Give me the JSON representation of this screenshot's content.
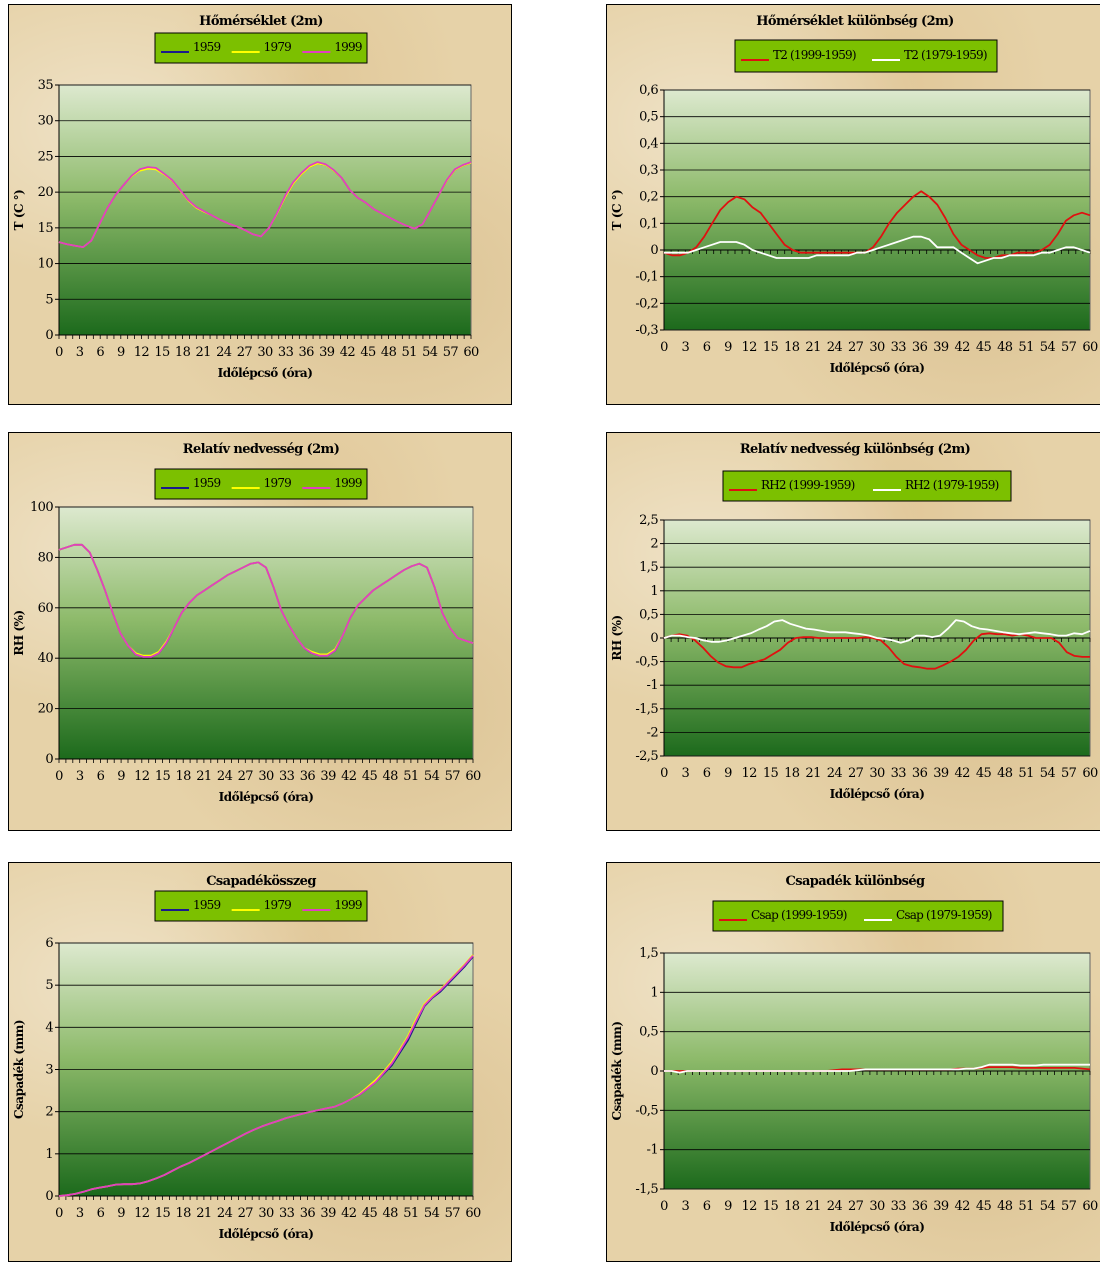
{
  "charts": [
    {
      "id": "p0",
      "title": "Hőmérséklet (2m)",
      "xlabel": "Időlépcső (óra)",
      "ylabel": "T (C °)",
      "type": "line",
      "ylim": [
        0,
        35
      ],
      "yticks": [
        "0",
        "5",
        "10",
        "15",
        "20",
        "25",
        "30",
        "35"
      ],
      "legend": "top-center",
      "series": [
        {
          "name": "1959",
          "color": "#1a1a8c",
          "values": [
            13,
            12.7,
            12.5,
            12.3,
            13.2,
            15.5,
            17.8,
            19.6,
            21,
            22.2,
            23,
            23.4,
            23.3,
            22.5,
            21.6,
            20.2,
            18.8,
            17.8,
            17.2,
            16.7,
            16.1,
            15.6,
            15.2,
            14.7,
            14.1,
            13.8,
            15,
            17,
            19.3,
            21.2,
            22.5,
            23.5,
            24,
            23.8,
            23,
            22,
            20.3,
            19.2,
            18.5,
            17.6,
            17,
            16.4,
            15.8,
            15.3,
            14.9,
            15.5,
            17.5,
            19.6,
            21.6,
            23.1,
            23.7,
            24.1
          ]
        },
        {
          "name": "1979",
          "color": "#ffff00",
          "values": [
            13,
            12.7,
            12.5,
            12.3,
            13.2,
            15.5,
            17.8,
            19.6,
            21,
            22.2,
            23,
            23.3,
            23.2,
            22.5,
            21.6,
            20.2,
            18.8,
            17.8,
            17.2,
            16.7,
            16.1,
            15.6,
            15.2,
            14.7,
            14.1,
            13.8,
            15,
            17,
            19.3,
            21.2,
            22.5,
            23.5,
            24,
            23.8,
            23,
            22,
            20.3,
            19.2,
            18.5,
            17.6,
            17,
            16.4,
            15.8,
            15.3,
            14.9,
            15.5,
            17.5,
            19.6,
            21.6,
            23.1,
            23.7,
            24.1
          ]
        },
        {
          "name": "1999",
          "color": "#e040c0",
          "values": [
            13,
            12.7,
            12.5,
            12.3,
            13.2,
            15.5,
            17.8,
            19.6,
            21,
            22.3,
            23.2,
            23.5,
            23.4,
            22.6,
            21.7,
            20.3,
            18.9,
            17.9,
            17.3,
            16.7,
            16.1,
            15.6,
            15.2,
            14.7,
            14.1,
            13.8,
            15,
            17.1,
            19.5,
            21.4,
            22.7,
            23.7,
            24.2,
            23.9,
            23.1,
            22,
            20.3,
            19.2,
            18.5,
            17.6,
            17,
            16.4,
            15.8,
            15.3,
            14.9,
            15.5,
            17.5,
            19.6,
            21.7,
            23.2,
            23.8,
            24.2
          ]
        }
      ]
    },
    {
      "id": "p1",
      "title": "Hőmérséklet különbség (2m)",
      "xlabel": "Időlépcső (óra)",
      "ylabel": "T (C °)",
      "type": "line",
      "ylim": [
        -0.3,
        0.6
      ],
      "yticks": [
        "-0,3",
        "-0,2",
        "-0,1",
        "0",
        "0,1",
        "0,2",
        "0,3",
        "0,4",
        "0,5",
        "0,6"
      ],
      "legend": "top-center",
      "series": [
        {
          "name": "T2 (1999-1959)",
          "color": "#e01010",
          "values": [
            -0.01,
            -0.02,
            -0.02,
            -0.01,
            0.01,
            0.05,
            0.1,
            0.15,
            0.18,
            0.2,
            0.19,
            0.16,
            0.14,
            0.1,
            0.06,
            0.02,
            0,
            -0.01,
            -0.01,
            -0.01,
            -0.01,
            -0.01,
            -0.01,
            -0.01,
            -0.01,
            -0.01,
            0.01,
            0.05,
            0.1,
            0.14,
            0.17,
            0.2,
            0.22,
            0.2,
            0.17,
            0.12,
            0.06,
            0.02,
            0,
            -0.02,
            -0.03,
            -0.03,
            -0.02,
            -0.02,
            -0.01,
            -0.01,
            -0.01,
            0,
            0.02,
            0.06,
            0.11,
            0.13,
            0.14,
            0.13
          ]
        },
        {
          "name": "T2 (1979-1959)",
          "color": "#ffffff",
          "values": [
            -0.01,
            -0.01,
            -0.01,
            -0.01,
            0,
            0.01,
            0.02,
            0.03,
            0.03,
            0.03,
            0.02,
            0,
            -0.01,
            -0.02,
            -0.03,
            -0.03,
            -0.03,
            -0.03,
            -0.03,
            -0.02,
            -0.02,
            -0.02,
            -0.02,
            -0.02,
            -0.01,
            -0.01,
            0,
            0.01,
            0.02,
            0.03,
            0.04,
            0.05,
            0.05,
            0.04,
            0.01,
            0.01,
            0.01,
            -0.01,
            -0.03,
            -0.05,
            -0.04,
            -0.03,
            -0.03,
            -0.02,
            -0.02,
            -0.02,
            -0.02,
            -0.01,
            -0.01,
            0,
            0.01,
            0.01,
            0,
            -0.01
          ]
        }
      ]
    },
    {
      "id": "p2",
      "title": "Relatív nedvesség (2m)",
      "xlabel": "Időlépcső (óra)",
      "ylabel": "RH (%)",
      "type": "line",
      "ylim": [
        0,
        100
      ],
      "yticks": [
        "0",
        "20",
        "40",
        "60",
        "80",
        "100"
      ],
      "legend": "top-center",
      "series": [
        {
          "name": "1959",
          "color": "#1a1a8c",
          "values": [
            83,
            84,
            85,
            85,
            82,
            75,
            67,
            58,
            50,
            45,
            41.5,
            40.5,
            40.5,
            42,
            46,
            52,
            58,
            62,
            65,
            67,
            69,
            71,
            73,
            74.5,
            76,
            77.5,
            78,
            76,
            68,
            59,
            53,
            48,
            44,
            42,
            41,
            41,
            43,
            49,
            56,
            61,
            64,
            67,
            69,
            71,
            73,
            75,
            76.5,
            77.5,
            76,
            68,
            58,
            52,
            48,
            47,
            46
          ]
        },
        {
          "name": "1979",
          "color": "#ffff00",
          "values": [
            83,
            84,
            85,
            85,
            82,
            75,
            67,
            58,
            50,
            45,
            42,
            41,
            41,
            42.5,
            46.5,
            52,
            58,
            62,
            65,
            67,
            69,
            71,
            73,
            74.5,
            76,
            77.5,
            78,
            76,
            68,
            59,
            53,
            48,
            44,
            42.5,
            41.5,
            41.5,
            43.5,
            49,
            56,
            61,
            64,
            67,
            69,
            71,
            73,
            75,
            76.5,
            77.5,
            76,
            68,
            58,
            52,
            48,
            47,
            46
          ]
        },
        {
          "name": "1999",
          "color": "#e040c0",
          "values": [
            83,
            84,
            85,
            85,
            82,
            75,
            67,
            58,
            50,
            45,
            41.5,
            40.5,
            40.5,
            42,
            46,
            52,
            58,
            62,
            65,
            67,
            69,
            71,
            73,
            74.5,
            76,
            77.5,
            78,
            76,
            68,
            59,
            53,
            48,
            44,
            42,
            41,
            41,
            43,
            49,
            56,
            61,
            64,
            67,
            69,
            71,
            73,
            75,
            76.5,
            77.5,
            76,
            68,
            58,
            52,
            48,
            47,
            46
          ]
        }
      ]
    },
    {
      "id": "p3",
      "title": "Relatív nedvesség különbség (2m)",
      "xlabel": "Időlépcső (óra)",
      "ylabel": "RH (%)",
      "type": "line",
      "ylim": [
        -2.5,
        2.5
      ],
      "yticks": [
        "-2,5",
        "-2",
        "-1,5",
        "-1",
        "-0,5",
        "0",
        "0,5",
        "1",
        "1,5",
        "2",
        "2,5"
      ],
      "legend": "top-center",
      "series": [
        {
          "name": "RH2 (1999-1959)",
          "color": "#e01010",
          "values": [
            0,
            0.05,
            0.08,
            0.05,
            -0.05,
            -0.2,
            -0.38,
            -0.52,
            -0.6,
            -0.62,
            -0.62,
            -0.55,
            -0.5,
            -0.45,
            -0.35,
            -0.25,
            -0.1,
            0,
            0.02,
            0.02,
            0,
            0,
            0,
            0,
            0,
            0,
            0.02,
            0,
            -0.05,
            -0.2,
            -0.4,
            -0.55,
            -0.6,
            -0.62,
            -0.65,
            -0.65,
            -0.58,
            -0.5,
            -0.4,
            -0.25,
            -0.05,
            0.08,
            0.1,
            0.08,
            0.08,
            0.05,
            0.08,
            0.05,
            0,
            0,
            0,
            -0.1,
            -0.3,
            -0.38,
            -0.4,
            -0.4
          ]
        },
        {
          "name": "RH2 (1979-1959)",
          "color": "#ffffff",
          "values": [
            0,
            0.05,
            0.05,
            0.02,
            0,
            -0.05,
            -0.08,
            -0.08,
            -0.05,
            0,
            0.05,
            0.1,
            0.18,
            0.25,
            0.35,
            0.38,
            0.3,
            0.25,
            0.2,
            0.18,
            0.15,
            0.12,
            0.12,
            0.12,
            0.1,
            0.08,
            0.05,
            0,
            -0.02,
            -0.05,
            -0.1,
            -0.05,
            0.05,
            0.05,
            0.02,
            0.05,
            0.2,
            0.38,
            0.35,
            0.25,
            0.2,
            0.18,
            0.15,
            0.12,
            0.1,
            0.08,
            0.1,
            0.12,
            0.1,
            0.08,
            0.05,
            0.05,
            0.1,
            0.08,
            0.15
          ]
        }
      ]
    },
    {
      "id": "p4",
      "title": "Csapadékösszeg",
      "xlabel": "Időlépcső (óra)",
      "ylabel": "Csapadék (mm)",
      "type": "line",
      "ylim": [
        0,
        6
      ],
      "yticks": [
        "0",
        "1",
        "2",
        "3",
        "4",
        "5",
        "6"
      ],
      "legend": "top-center",
      "series": [
        {
          "name": "1959",
          "color": "#1a1a8c",
          "values": [
            0,
            0.02,
            0.05,
            0.1,
            0.16,
            0.2,
            0.23,
            0.27,
            0.28,
            0.28,
            0.3,
            0.35,
            0.42,
            0.5,
            0.6,
            0.7,
            0.78,
            0.88,
            0.98,
            1.08,
            1.18,
            1.28,
            1.38,
            1.48,
            1.57,
            1.65,
            1.72,
            1.78,
            1.85,
            1.9,
            1.95,
            2.0,
            2.04,
            2.08,
            2.12,
            2.2,
            2.3,
            2.4,
            2.55,
            2.7,
            2.9,
            3.1,
            3.4,
            3.7,
            4.1,
            4.5,
            4.7,
            4.85,
            5.05,
            5.25,
            5.45,
            5.68
          ]
        },
        {
          "name": "1979",
          "color": "#ffff00",
          "values": [
            0,
            0.02,
            0.05,
            0.1,
            0.16,
            0.2,
            0.23,
            0.27,
            0.28,
            0.28,
            0.3,
            0.35,
            0.42,
            0.5,
            0.6,
            0.7,
            0.78,
            0.88,
            0.98,
            1.08,
            1.18,
            1.28,
            1.38,
            1.48,
            1.57,
            1.65,
            1.72,
            1.78,
            1.85,
            1.9,
            1.95,
            2.0,
            2.04,
            2.08,
            2.12,
            2.2,
            2.3,
            2.42,
            2.58,
            2.75,
            2.95,
            3.18,
            3.48,
            3.8,
            4.2,
            4.55,
            4.75,
            4.9,
            5.1,
            5.3,
            5.5,
            5.72
          ]
        },
        {
          "name": "1999",
          "color": "#e040c0",
          "values": [
            0,
            0.02,
            0.05,
            0.1,
            0.16,
            0.2,
            0.23,
            0.27,
            0.28,
            0.28,
            0.3,
            0.35,
            0.42,
            0.5,
            0.6,
            0.7,
            0.78,
            0.88,
            0.98,
            1.08,
            1.18,
            1.28,
            1.38,
            1.48,
            1.57,
            1.65,
            1.72,
            1.78,
            1.85,
            1.9,
            1.95,
            2.0,
            2.04,
            2.08,
            2.12,
            2.2,
            2.3,
            2.4,
            2.55,
            2.7,
            2.92,
            3.14,
            3.44,
            3.76,
            4.15,
            4.52,
            4.72,
            4.88,
            5.08,
            5.28,
            5.48,
            5.7
          ]
        }
      ]
    },
    {
      "id": "p5",
      "title": "Csapadék különbség",
      "xlabel": "Időlépcső (óra)",
      "ylabel": "Csapadék (mm)",
      "type": "line",
      "ylim": [
        -1.5,
        1.5
      ],
      "yticks": [
        "-1,5",
        "-1",
        "-0,5",
        "0",
        "0,5",
        "1",
        "1,5"
      ],
      "legend": "top-center",
      "series": [
        {
          "name": "Csap (1999-1959)",
          "color": "#e01010",
          "values": [
            0,
            0,
            0,
            0,
            0,
            0,
            0,
            0,
            0,
            0,
            0,
            0,
            0,
            0,
            0,
            0,
            0,
            0,
            0,
            0,
            0,
            0,
            0.01,
            0.02,
            0.02,
            0.02,
            0.02,
            0.02,
            0.02,
            0.02,
            0.02,
            0.02,
            0.02,
            0.02,
            0.02,
            0.02,
            0.02,
            0.02,
            0.03,
            0.03,
            0.03,
            0.04,
            0.05,
            0.05,
            0.05,
            0.05,
            0.04,
            0.04,
            0.04,
            0.04,
            0.04,
            0.04,
            0.04,
            0.04,
            0.03,
            0.02
          ]
        },
        {
          "name": "Csap (1979-1959)",
          "color": "#ffffff",
          "values": [
            0,
            0,
            -0.02,
            0,
            0,
            0,
            0,
            0,
            0,
            0,
            0,
            0,
            0,
            0,
            0,
            0,
            0,
            0,
            0,
            0,
            0,
            0,
            0,
            0,
            0,
            0.01,
            0.02,
            0.02,
            0.02,
            0.02,
            0.02,
            0.02,
            0.02,
            0.02,
            0.02,
            0.02,
            0.02,
            0.02,
            0.02,
            0.03,
            0.03,
            0.05,
            0.08,
            0.08,
            0.08,
            0.08,
            0.07,
            0.07,
            0.07,
            0.08,
            0.08,
            0.08,
            0.08,
            0.08,
            0.08,
            0.08
          ]
        }
      ]
    }
  ]
}
